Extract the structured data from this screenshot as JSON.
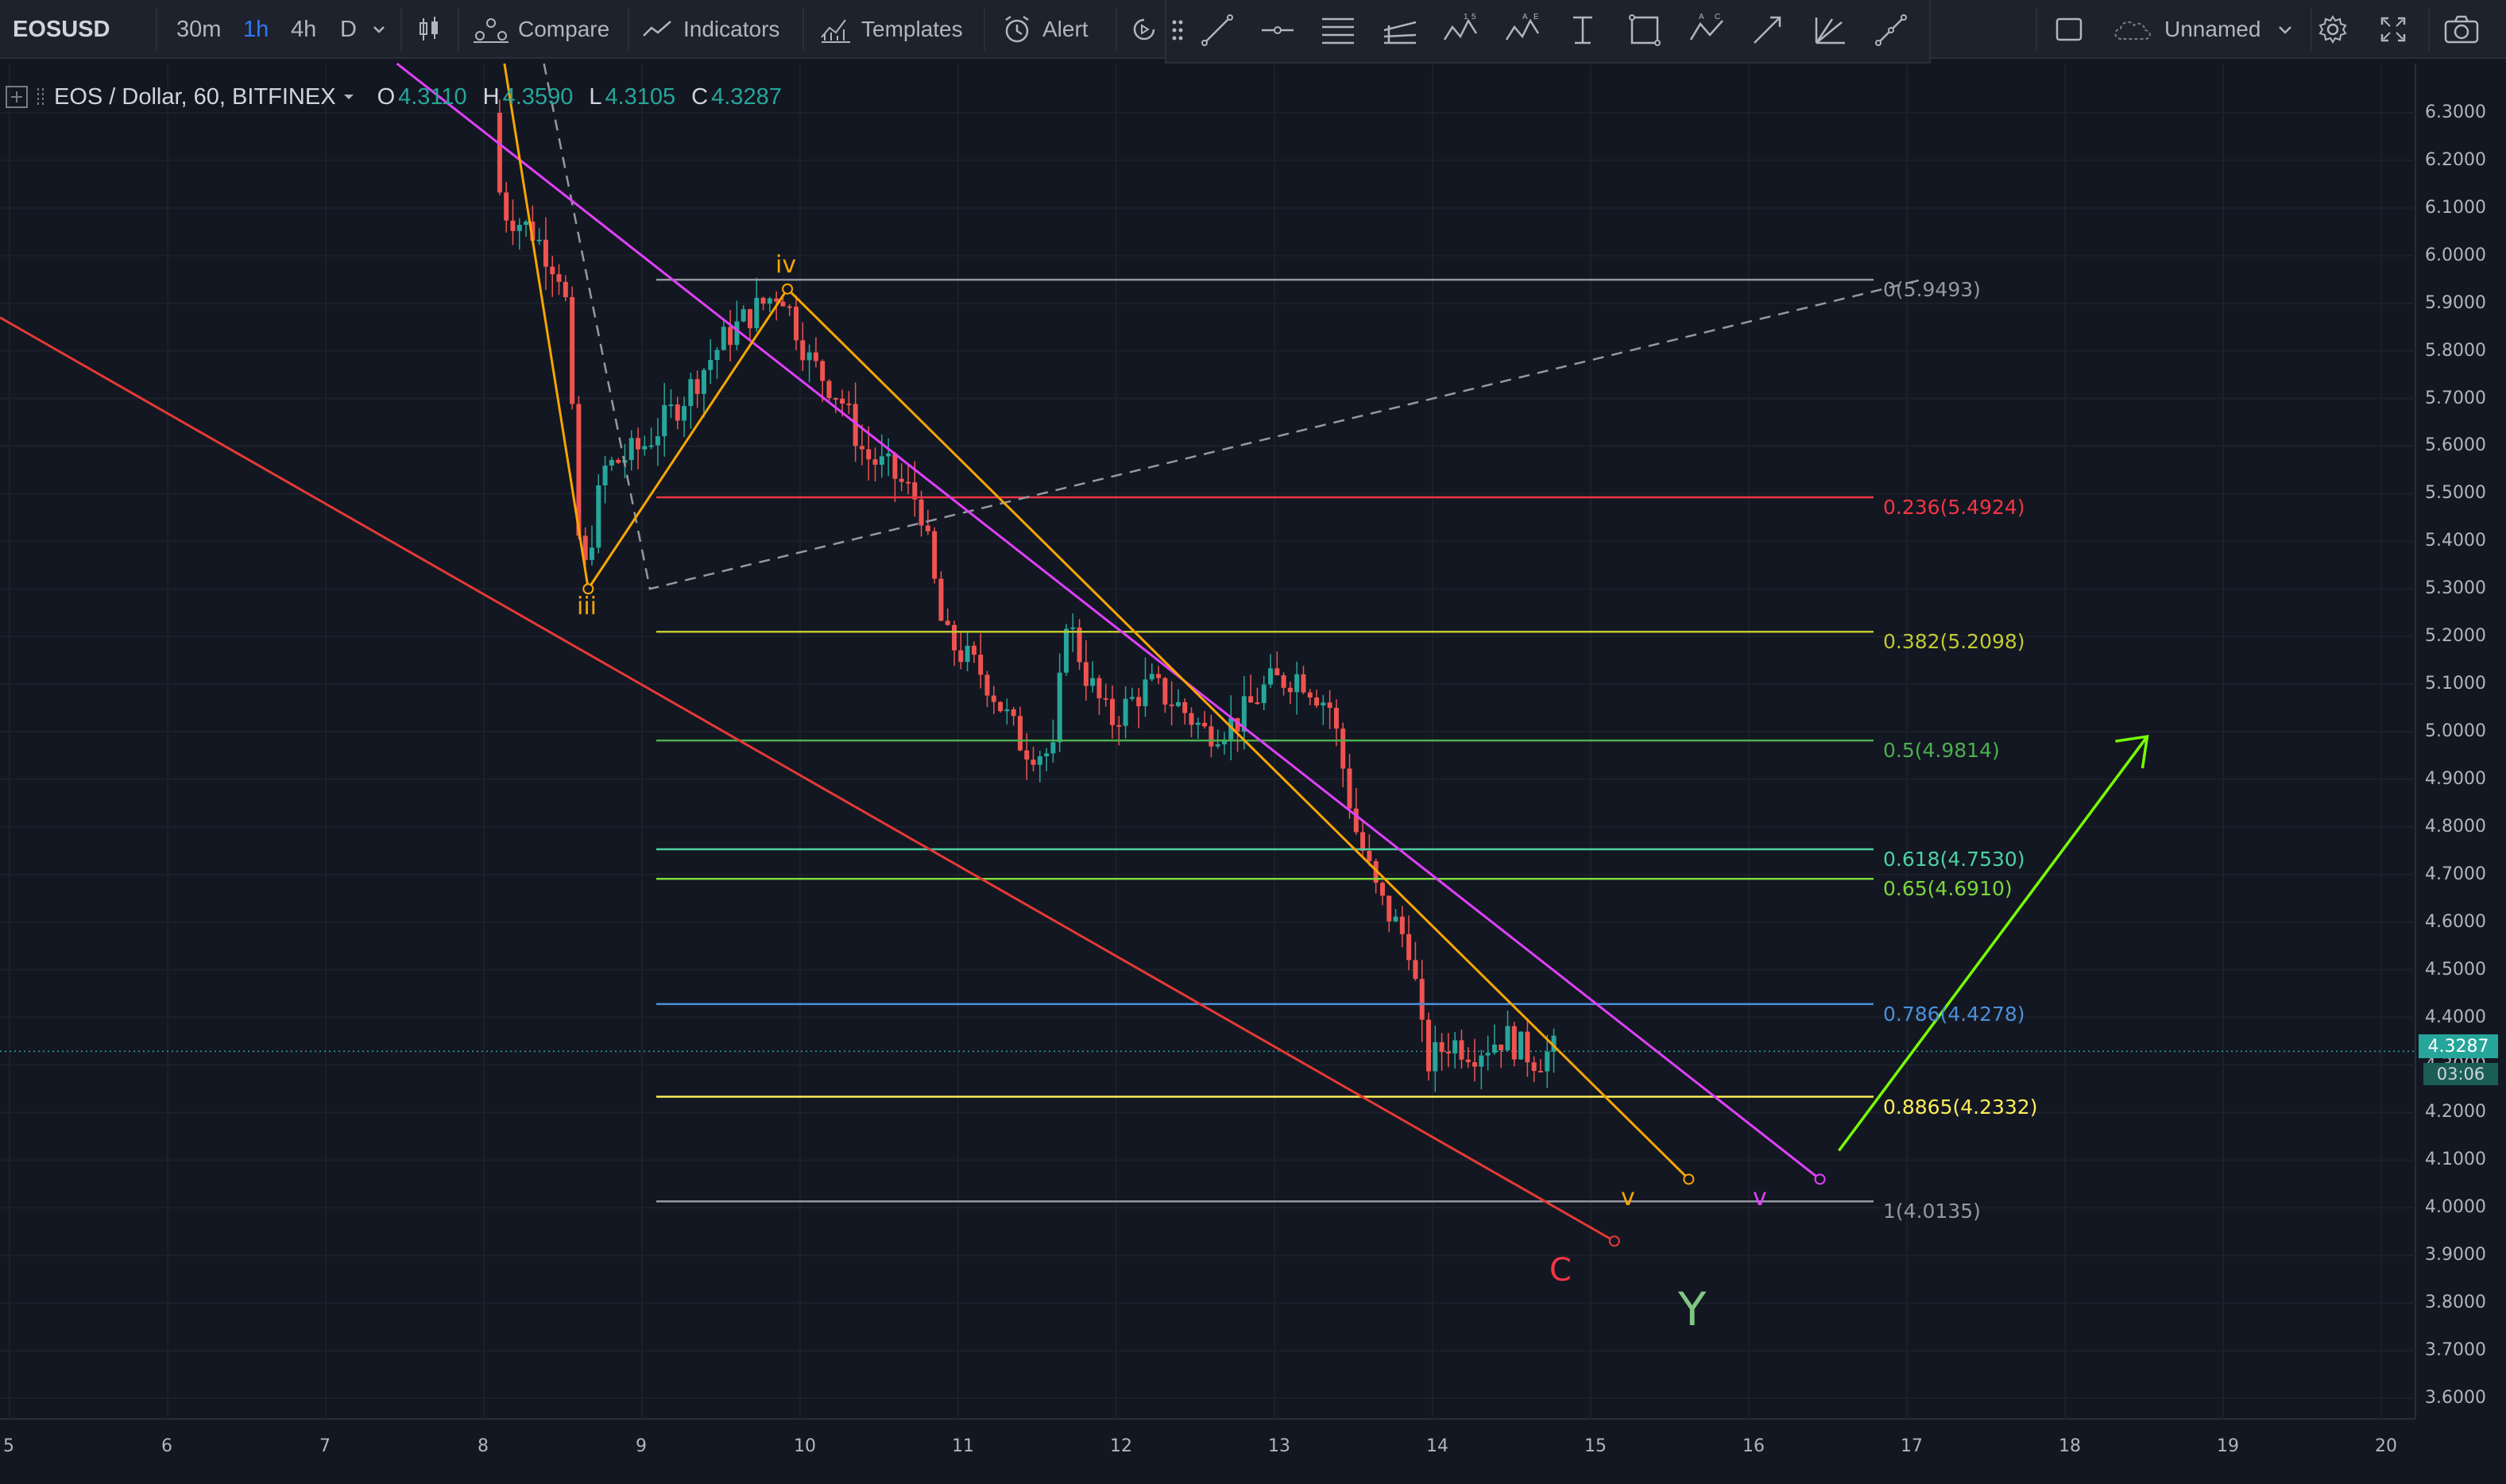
{
  "toolbar": {
    "symbol": "EOSUSD",
    "timeframes": [
      "30m",
      "1h",
      "4h",
      "D"
    ],
    "active_timeframe": "1h",
    "compare_label": "Compare",
    "indicators_label": "Indicators",
    "templates_label": "Templates",
    "alert_label": "Alert",
    "layout_name": "Unnamed"
  },
  "legend": {
    "title": "EOS / Dollar, 60, BITFINEX",
    "open_label": "O",
    "open": "4.3110",
    "high_label": "H",
    "high": "4.3590",
    "low_label": "L",
    "low": "4.3105",
    "close_label": "C",
    "close": "4.3287"
  },
  "price_axis": {
    "ticks": [
      "6.3000",
      "6.2000",
      "6.1000",
      "6.0000",
      "5.9000",
      "5.8000",
      "5.7000",
      "5.6000",
      "5.5000",
      "5.4000",
      "5.3000",
      "5.2000",
      "5.1000",
      "5.0000",
      "4.9000",
      "4.8000",
      "4.7000",
      "4.6000",
      "4.5000",
      "4.4000",
      "4.3000",
      "4.2000",
      "4.1000",
      "4.0000",
      "3.9000",
      "3.8000",
      "3.7000",
      "3.6000"
    ],
    "last_price": "4.3287",
    "countdown": "03:06"
  },
  "time_axis": {
    "ticks": [
      "5",
      "6",
      "7",
      "8",
      "9",
      "10",
      "11",
      "12",
      "13",
      "14",
      "15",
      "16",
      "17",
      "18",
      "19",
      "20"
    ]
  },
  "fib_levels": [
    {
      "label": "0(5.9493)",
      "value": 5.9493,
      "color": "#9598a1"
    },
    {
      "label": "0.236(5.4924)",
      "value": 5.4924,
      "color": "#f23645"
    },
    {
      "label": "0.382(5.2098)",
      "value": 5.2098,
      "color": "#c0ca33"
    },
    {
      "label": "0.5(4.9814)",
      "value": 4.9814,
      "color": "#4caf50"
    },
    {
      "label": "0.618(4.7530)",
      "value": 4.753,
      "color": "#4dd0a1"
    },
    {
      "label": "0.65(4.6910)",
      "value": 4.691,
      "color": "#7bd83a"
    },
    {
      "label": "0.786(4.4278)",
      "value": 4.4278,
      "color": "#4a90d9"
    },
    {
      "label": "0.8865(4.2332)",
      "value": 4.2332,
      "color": "#ffee58"
    },
    {
      "label": "1(4.0135)",
      "value": 4.0135,
      "color": "#9598a1"
    }
  ],
  "wave_labels": {
    "iii": "iii",
    "iv": "iv",
    "v_orange": "v",
    "v_magenta": "v",
    "c": "C",
    "y": "Y"
  },
  "colors": {
    "background": "#131722",
    "up": "#26a69a",
    "down": "#ef5350",
    "orange": "#f7a600",
    "magenta": "#e040fb",
    "red_line": "#e53935",
    "green_arrow": "#76ff03"
  }
}
